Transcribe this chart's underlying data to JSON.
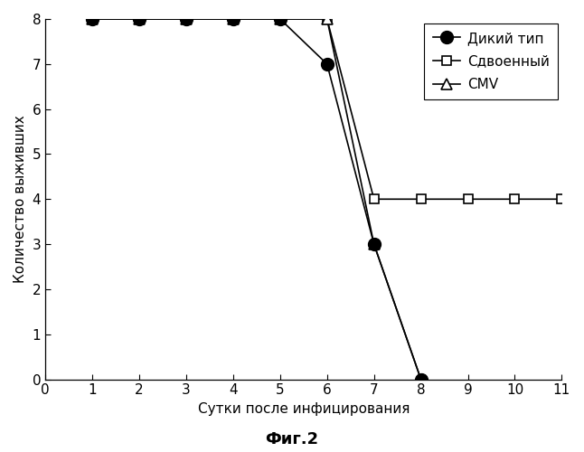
{
  "title": "Фиг.2",
  "xlabel": "Сутки после инфицирования",
  "ylabel": "Количество выживших",
  "xlim": [
    0,
    11
  ],
  "ylim": [
    0,
    8
  ],
  "xticks": [
    0,
    1,
    2,
    3,
    4,
    5,
    6,
    7,
    8,
    9,
    10,
    11
  ],
  "yticks": [
    0,
    1,
    2,
    3,
    4,
    5,
    6,
    7,
    8
  ],
  "wild_x": [
    1,
    2,
    3,
    4,
    5,
    6,
    7,
    8
  ],
  "wild_y": [
    8,
    8,
    8,
    8,
    8,
    7,
    3,
    0
  ],
  "double_x": [
    1,
    2,
    3,
    4,
    5,
    6,
    7,
    8,
    9,
    10,
    11
  ],
  "double_y": [
    8,
    8,
    8,
    8,
    8,
    8,
    4,
    4,
    4,
    4,
    4
  ],
  "cmv_x": [
    1,
    2,
    3,
    4,
    5,
    6,
    7,
    8
  ],
  "cmv_y": [
    8,
    8,
    8,
    8,
    8,
    8,
    3,
    0
  ],
  "legend_wild": "Дикий тип",
  "legend_double": "Сдвоенный",
  "legend_cmv": "CMV",
  "background_color": "#ffffff",
  "line_color": "#000000",
  "marker_size_circle": 10,
  "marker_size_square": 7,
  "marker_size_triangle": 8,
  "linewidth": 1.2,
  "tick_labelsize": 11,
  "xlabel_fontsize": 11,
  "ylabel_fontsize": 11,
  "legend_fontsize": 11,
  "title_fontsize": 13
}
